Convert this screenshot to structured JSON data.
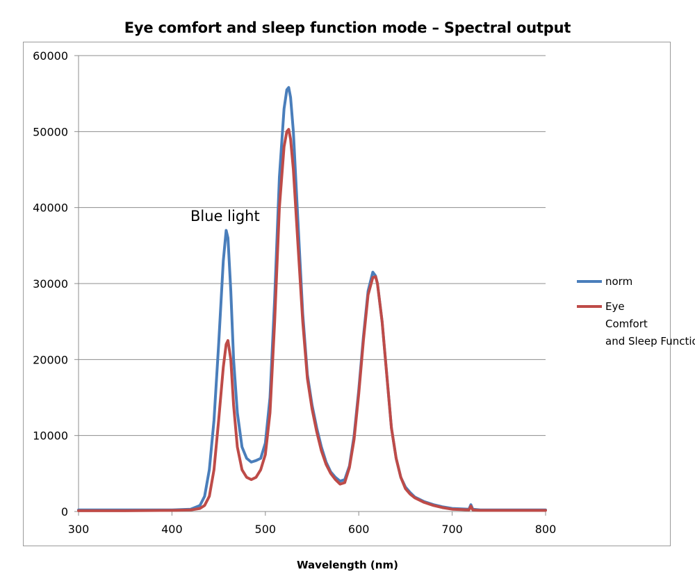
{
  "chart_data": {
    "type": "line",
    "title": "Eye comfort and sleep function mode – Spectral output",
    "xlabel": "Wavelength (nm)",
    "ylabel": "",
    "xlim": [
      300,
      800
    ],
    "ylim": [
      0,
      60000
    ],
    "x_ticks": [
      "300",
      "400",
      "500",
      "600",
      "700",
      "800"
    ],
    "y_ticks": [
      "0",
      "10000",
      "20000",
      "30000",
      "40000",
      "50000",
      "60000"
    ],
    "grid": "horizontal",
    "legend_position": "right",
    "annotations": [
      {
        "text": "Blue light",
        "x": 455,
        "y": 37500
      }
    ],
    "series": [
      {
        "name": "norm",
        "color": "#4a7ebb",
        "x": [
          300,
          350,
          400,
          420,
          430,
          435,
          440,
          445,
          450,
          455,
          458,
          460,
          463,
          466,
          470,
          475,
          480,
          485,
          490,
          495,
          500,
          505,
          510,
          515,
          520,
          523,
          525,
          527,
          530,
          535,
          540,
          545,
          550,
          555,
          560,
          565,
          570,
          575,
          580,
          585,
          590,
          595,
          600,
          605,
          610,
          615,
          618,
          620,
          625,
          630,
          635,
          640,
          645,
          650,
          655,
          660,
          670,
          680,
          690,
          700,
          710,
          718,
          720,
          722,
          730,
          740,
          750,
          760,
          770,
          780,
          790,
          800
        ],
        "values": [
          200,
          200,
          200,
          300,
          800,
          2000,
          5500,
          12000,
          22000,
          33000,
          37000,
          36000,
          29000,
          20000,
          13000,
          8500,
          7000,
          6500,
          6700,
          7000,
          9000,
          15000,
          28000,
          44000,
          53000,
          55500,
          55800,
          54500,
          50000,
          38000,
          26000,
          18000,
          14000,
          11000,
          8500,
          6500,
          5200,
          4500,
          4000,
          4200,
          6000,
          10000,
          16000,
          23000,
          29000,
          31500,
          31000,
          30000,
          25000,
          18000,
          11000,
          7000,
          4500,
          3200,
          2500,
          1900,
          1300,
          900,
          600,
          400,
          350,
          300,
          900,
          300,
          200,
          200,
          200,
          200,
          200,
          200,
          200,
          200
        ]
      },
      {
        "name": "Eye Comfort and Sleep Function",
        "color": "#be4b48",
        "x": [
          300,
          350,
          400,
          420,
          430,
          435,
          440,
          445,
          450,
          455,
          458,
          460,
          463,
          466,
          470,
          475,
          480,
          485,
          490,
          495,
          500,
          505,
          510,
          515,
          520,
          523,
          525,
          527,
          530,
          535,
          540,
          545,
          550,
          555,
          560,
          565,
          570,
          575,
          580,
          585,
          590,
          595,
          600,
          605,
          610,
          615,
          618,
          620,
          625,
          630,
          635,
          640,
          645,
          650,
          655,
          660,
          670,
          680,
          690,
          700,
          710,
          718,
          720,
          722,
          730,
          740,
          750,
          760,
          770,
          780,
          790,
          800
        ],
        "values": [
          100,
          100,
          150,
          200,
          400,
          800,
          2000,
          5500,
          12000,
          19000,
          22000,
          22500,
          20000,
          14000,
          8500,
          5500,
          4500,
          4200,
          4500,
          5500,
          7500,
          13000,
          25000,
          40000,
          48000,
          50000,
          50300,
          49000,
          45000,
          35000,
          25000,
          17500,
          13500,
          10500,
          8000,
          6200,
          5000,
          4200,
          3600,
          3800,
          5800,
          9500,
          15500,
          22500,
          28500,
          30800,
          30900,
          30000,
          25000,
          18000,
          11000,
          7000,
          4500,
          3000,
          2300,
          1800,
          1200,
          800,
          500,
          300,
          250,
          200,
          700,
          200,
          150,
          150,
          150,
          150,
          150,
          150,
          150,
          150
        ]
      }
    ]
  }
}
